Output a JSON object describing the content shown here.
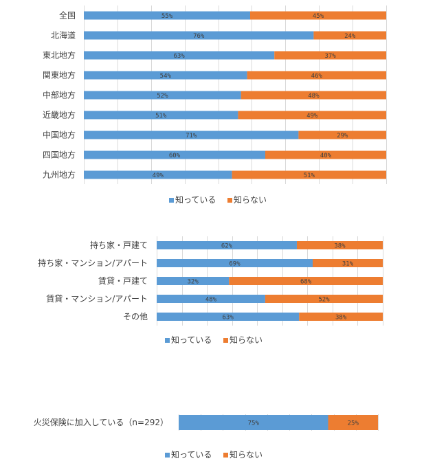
{
  "colors": {
    "known": "#5B9BD5",
    "unknown": "#ED7D31"
  },
  "chart_data": [
    {
      "type": "bar",
      "orientation": "horizontal-stacked-100",
      "title": "",
      "xlim": [
        0,
        100
      ],
      "categories": [
        "全国",
        "北海道",
        "東北地方",
        "関東地方",
        "中部地方",
        "近畿地方",
        "中国地方",
        "四国地方",
        "九州地方"
      ],
      "series": [
        {
          "name": "知っている",
          "values": [
            55,
            76,
            63,
            54,
            52,
            51,
            71,
            60,
            49
          ],
          "labels": [
            "55%",
            "76%",
            "63%",
            "54%",
            "52%",
            "51%",
            "71%",
            "60%",
            "49%"
          ]
        },
        {
          "name": "知らない",
          "values": [
            45,
            24,
            37,
            46,
            48,
            49,
            29,
            40,
            51
          ],
          "labels": [
            "45%",
            "24%",
            "37%",
            "46%",
            "48%",
            "49%",
            "29%",
            "40%",
            "51%"
          ]
        }
      ],
      "legend": [
        "知っている",
        "知らない"
      ],
      "legend_position": "bottom",
      "grid": true
    },
    {
      "type": "bar",
      "orientation": "horizontal-stacked-100",
      "title": "",
      "xlim": [
        0,
        100
      ],
      "categories": [
        "持ち家・戸建て",
        "持ち家・マンション/アパート",
        "賃貸・戸建て",
        "賃貸・マンション/アパート",
        "その他"
      ],
      "series": [
        {
          "name": "知っている",
          "values": [
            62,
            69,
            32,
            48,
            63
          ],
          "labels": [
            "62%",
            "69%",
            "32%",
            "48%",
            "63%"
          ]
        },
        {
          "name": "知らない",
          "values": [
            38,
            31,
            68,
            52,
            38
          ],
          "labels": [
            "38%",
            "31%",
            "68%",
            "52%",
            "38%"
          ]
        }
      ],
      "legend": [
        "知っている",
        "知らない"
      ],
      "legend_position": "bottom",
      "grid": true
    },
    {
      "type": "bar",
      "orientation": "horizontal-stacked-100",
      "title": "",
      "xlim": [
        0,
        100
      ],
      "categories": [
        "火災保険に加入している（n=292）"
      ],
      "series": [
        {
          "name": "知っている",
          "values": [
            75
          ],
          "labels": [
            "75%"
          ]
        },
        {
          "name": "知らない",
          "values": [
            25
          ],
          "labels": [
            "25%"
          ]
        }
      ],
      "legend": [
        "知っている",
        "知らない"
      ],
      "legend_position": "bottom",
      "grid": true
    }
  ]
}
